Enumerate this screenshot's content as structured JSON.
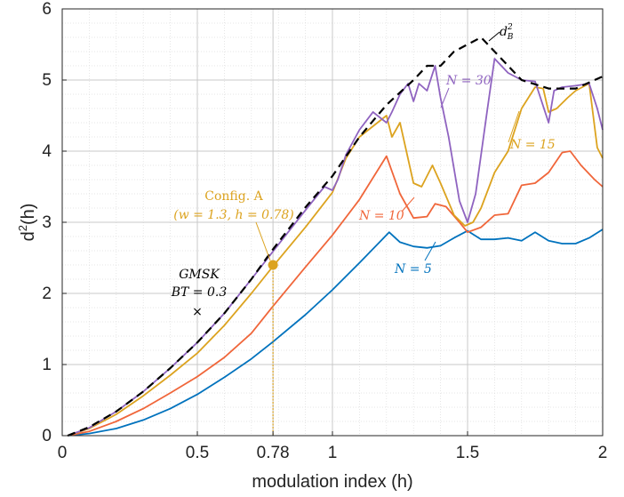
{
  "chart_data": {
    "type": "line",
    "xlabel": "modulation index (h)",
    "ylabel": "d²(h)",
    "xlim": [
      0,
      2
    ],
    "ylim": [
      0,
      6
    ],
    "xticks": [
      0,
      0.5,
      0.78,
      1,
      1.5,
      2
    ],
    "xtick_labels": [
      "0",
      "0.5",
      "0.78",
      "1",
      "1.5",
      "2"
    ],
    "yticks": [
      0,
      1,
      2,
      3,
      4,
      5,
      6
    ],
    "ytick_labels": [
      "0",
      "1",
      "2",
      "3",
      "4",
      "5",
      "6"
    ],
    "grid": true,
    "minor_grid": true,
    "colors": {
      "N5": "#0072bd",
      "N10": "#f0663a",
      "N15": "#dca31f",
      "N30": "#8f63c0",
      "bound": "#000000",
      "marker": "#dca31f",
      "gmsk": "#000000"
    },
    "series": [
      {
        "name": "N = 5",
        "style": "solid",
        "x": [
          0.02,
          0.1,
          0.2,
          0.3,
          0.4,
          0.5,
          0.6,
          0.7,
          0.78,
          0.9,
          1.0,
          1.1,
          1.21,
          1.25,
          1.3,
          1.35,
          1.4,
          1.45,
          1.5,
          1.55,
          1.6,
          1.65,
          1.7,
          1.75,
          1.8,
          1.85,
          1.9,
          1.95,
          2.0
        ],
        "values": [
          0.0,
          0.03,
          0.1,
          0.22,
          0.38,
          0.58,
          0.82,
          1.08,
          1.32,
          1.7,
          2.05,
          2.43,
          2.86,
          2.72,
          2.66,
          2.64,
          2.67,
          2.78,
          2.88,
          2.76,
          2.76,
          2.78,
          2.74,
          2.86,
          2.74,
          2.7,
          2.7,
          2.78,
          2.9
        ]
      },
      {
        "name": "N = 10",
        "style": "solid",
        "x": [
          0.02,
          0.1,
          0.2,
          0.3,
          0.4,
          0.5,
          0.6,
          0.7,
          0.78,
          0.9,
          1.0,
          1.1,
          1.2,
          1.25,
          1.3,
          1.35,
          1.38,
          1.42,
          1.47,
          1.5,
          1.55,
          1.6,
          1.65,
          1.7,
          1.75,
          1.8,
          1.85,
          1.88,
          1.92,
          1.97,
          2.0
        ],
        "values": [
          0.0,
          0.06,
          0.2,
          0.38,
          0.6,
          0.83,
          1.1,
          1.44,
          1.82,
          2.37,
          2.82,
          3.32,
          3.93,
          3.4,
          3.06,
          3.08,
          3.26,
          3.22,
          3.0,
          2.86,
          2.93,
          3.1,
          3.12,
          3.52,
          3.55,
          3.7,
          3.98,
          4.0,
          3.8,
          3.6,
          3.5
        ]
      },
      {
        "name": "N = 15",
        "style": "solid",
        "x": [
          0.02,
          0.1,
          0.2,
          0.3,
          0.4,
          0.5,
          0.6,
          0.7,
          0.78,
          0.9,
          1.0,
          1.05,
          1.1,
          1.15,
          1.2,
          1.22,
          1.25,
          1.3,
          1.33,
          1.37,
          1.4,
          1.45,
          1.49,
          1.52,
          1.55,
          1.6,
          1.65,
          1.7,
          1.75,
          1.78,
          1.8,
          1.83,
          1.87,
          1.9,
          1.95,
          1.98,
          2.0
        ],
        "values": [
          0.0,
          0.1,
          0.3,
          0.56,
          0.85,
          1.16,
          1.55,
          2.0,
          2.38,
          2.93,
          3.42,
          3.9,
          4.2,
          4.35,
          4.5,
          4.2,
          4.4,
          3.55,
          3.5,
          3.8,
          3.55,
          3.1,
          2.95,
          3.0,
          3.2,
          3.7,
          4.0,
          4.6,
          4.9,
          4.88,
          4.55,
          4.6,
          4.75,
          4.85,
          4.95,
          4.05,
          3.9
        ]
      },
      {
        "name": "N = 30",
        "style": "solid",
        "x": [
          0.02,
          0.1,
          0.2,
          0.3,
          0.4,
          0.5,
          0.6,
          0.7,
          0.78,
          0.9,
          0.97,
          1.0,
          1.02,
          1.05,
          1.1,
          1.15,
          1.2,
          1.22,
          1.25,
          1.28,
          1.3,
          1.32,
          1.35,
          1.38,
          1.4,
          1.43,
          1.47,
          1.5,
          1.53,
          1.57,
          1.6,
          1.65,
          1.7,
          1.75,
          1.8,
          1.82,
          1.85,
          1.9,
          1.95,
          1.98,
          2.0
        ],
        "values": [
          0.0,
          0.11,
          0.34,
          0.62,
          0.95,
          1.31,
          1.72,
          2.2,
          2.59,
          3.17,
          3.5,
          3.45,
          3.6,
          3.95,
          4.3,
          4.55,
          4.4,
          4.55,
          4.8,
          4.95,
          4.7,
          4.95,
          4.85,
          5.2,
          4.75,
          4.2,
          3.3,
          3.0,
          3.4,
          4.5,
          5.3,
          5.1,
          5.0,
          4.98,
          4.4,
          4.85,
          4.9,
          4.92,
          4.95,
          4.6,
          4.3
        ]
      },
      {
        "name": "d²_B",
        "style": "dashed",
        "x": [
          0.02,
          0.1,
          0.2,
          0.3,
          0.4,
          0.5,
          0.6,
          0.7,
          0.78,
          0.9,
          1.0,
          1.1,
          1.2,
          1.3,
          1.35,
          1.4,
          1.45,
          1.5,
          1.55,
          1.6,
          1.7,
          1.8,
          1.9,
          2.0
        ],
        "values": [
          0.0,
          0.12,
          0.34,
          0.62,
          0.95,
          1.31,
          1.72,
          2.2,
          2.62,
          3.21,
          3.65,
          4.2,
          4.65,
          5.0,
          5.2,
          5.2,
          5.4,
          5.5,
          5.6,
          5.4,
          5.0,
          4.88,
          4.88,
          5.05
        ]
      }
    ],
    "config_point": {
      "x": 0.78,
      "y": 2.4
    },
    "gmsk_point": {
      "x": 0.5,
      "y": 1.75
    },
    "annotations": {
      "config_line1": "Config. A",
      "config_line2": "(w = 1.3, h = 0.78)",
      "gmsk_line1": "GMSK",
      "gmsk_line2": "BT = 0.3",
      "marker_symbol": "×",
      "label_n5": "N = 5",
      "label_n10": "N = 10",
      "label_n15": "N = 15",
      "label_n30": "N = 30",
      "label_bound_base": "d",
      "label_bound_sup": "2",
      "label_bound_sub": "B",
      "ylabel_base": "d",
      "ylabel_sup": "2",
      "ylabel_rest": "(h)"
    }
  }
}
